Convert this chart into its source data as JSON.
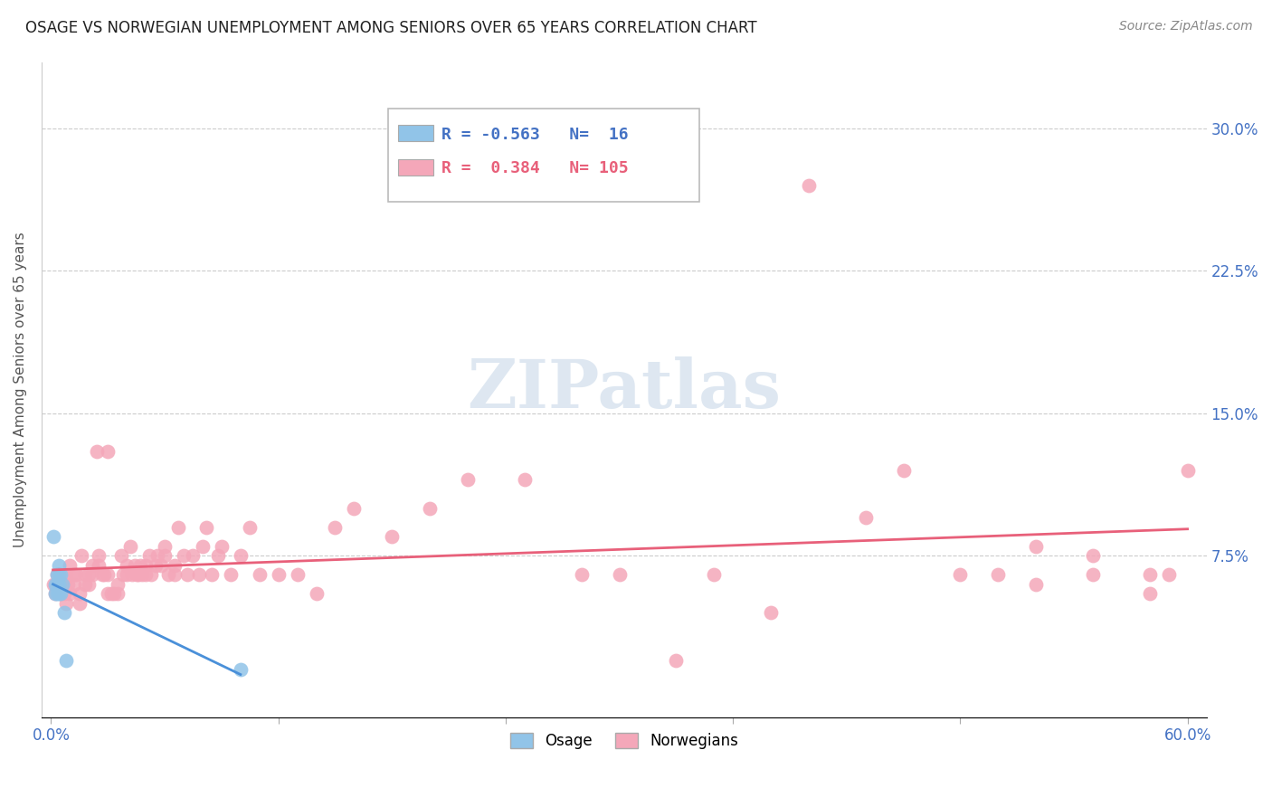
{
  "title": "OSAGE VS NORWEGIAN UNEMPLOYMENT AMONG SENIORS OVER 65 YEARS CORRELATION CHART",
  "source": "Source: ZipAtlas.com",
  "ylabel": "Unemployment Among Seniors over 65 years",
  "xlim": [
    -0.005,
    0.61
  ],
  "ylim": [
    -0.01,
    0.335
  ],
  "xticks": [
    0.0,
    0.12,
    0.24,
    0.36,
    0.48,
    0.6
  ],
  "xtick_labels": [
    "0.0%",
    "",
    "",
    "",
    "",
    "60.0%"
  ],
  "yticks_right": [
    0.075,
    0.15,
    0.225,
    0.3
  ],
  "ytick_labels_right": [
    "7.5%",
    "15.0%",
    "22.5%",
    "30.0%"
  ],
  "legend_R1": "-0.563",
  "legend_N1": "16",
  "legend_R2": "0.384",
  "legend_N2": "105",
  "osage_color": "#91c4e8",
  "norwegian_color": "#f4a7b9",
  "osage_line_color": "#4a90d9",
  "norwegian_line_color": "#e8607a",
  "watermark": "ZIPatlas",
  "watermark_color": "#c8d8e8",
  "osage_x": [
    0.001,
    0.002,
    0.002,
    0.003,
    0.003,
    0.003,
    0.004,
    0.004,
    0.004,
    0.004,
    0.005,
    0.005,
    0.006,
    0.007,
    0.008,
    0.1
  ],
  "osage_y": [
    0.085,
    0.055,
    0.06,
    0.055,
    0.06,
    0.065,
    0.055,
    0.06,
    0.065,
    0.07,
    0.055,
    0.065,
    0.06,
    0.045,
    0.02,
    0.015
  ],
  "norwegian_x": [
    0.001,
    0.002,
    0.002,
    0.003,
    0.003,
    0.004,
    0.004,
    0.005,
    0.005,
    0.006,
    0.007,
    0.007,
    0.008,
    0.008,
    0.009,
    0.01,
    0.01,
    0.012,
    0.012,
    0.013,
    0.015,
    0.015,
    0.016,
    0.018,
    0.018,
    0.02,
    0.02,
    0.022,
    0.022,
    0.024,
    0.025,
    0.025,
    0.027,
    0.028,
    0.03,
    0.03,
    0.03,
    0.032,
    0.033,
    0.035,
    0.035,
    0.037,
    0.038,
    0.04,
    0.04,
    0.042,
    0.043,
    0.044,
    0.045,
    0.046,
    0.047,
    0.048,
    0.05,
    0.05,
    0.052,
    0.053,
    0.055,
    0.056,
    0.058,
    0.06,
    0.06,
    0.062,
    0.065,
    0.065,
    0.067,
    0.07,
    0.072,
    0.075,
    0.078,
    0.08,
    0.082,
    0.085,
    0.088,
    0.09,
    0.095,
    0.1,
    0.105,
    0.11,
    0.12,
    0.13,
    0.14,
    0.15,
    0.16,
    0.18,
    0.2,
    0.22,
    0.25,
    0.28,
    0.3,
    0.33,
    0.35,
    0.38,
    0.4,
    0.43,
    0.45,
    0.48,
    0.5,
    0.52,
    0.55,
    0.58,
    0.59,
    0.6,
    0.58,
    0.55,
    0.52
  ],
  "norwegian_y": [
    0.06,
    0.06,
    0.055,
    0.065,
    0.06,
    0.06,
    0.065,
    0.055,
    0.06,
    0.058,
    0.06,
    0.055,
    0.05,
    0.065,
    0.06,
    0.055,
    0.07,
    0.065,
    0.06,
    0.065,
    0.05,
    0.055,
    0.075,
    0.06,
    0.065,
    0.065,
    0.06,
    0.07,
    0.065,
    0.13,
    0.075,
    0.07,
    0.065,
    0.065,
    0.055,
    0.065,
    0.13,
    0.055,
    0.055,
    0.055,
    0.06,
    0.075,
    0.065,
    0.065,
    0.07,
    0.08,
    0.065,
    0.07,
    0.065,
    0.065,
    0.07,
    0.065,
    0.07,
    0.065,
    0.075,
    0.065,
    0.07,
    0.075,
    0.07,
    0.075,
    0.08,
    0.065,
    0.07,
    0.065,
    0.09,
    0.075,
    0.065,
    0.075,
    0.065,
    0.08,
    0.09,
    0.065,
    0.075,
    0.08,
    0.065,
    0.075,
    0.09,
    0.065,
    0.065,
    0.065,
    0.055,
    0.09,
    0.1,
    0.085,
    0.1,
    0.115,
    0.115,
    0.065,
    0.065,
    0.02,
    0.065,
    0.045,
    0.27,
    0.095,
    0.12,
    0.065,
    0.065,
    0.06,
    0.075,
    0.055,
    0.065,
    0.12,
    0.065,
    0.065,
    0.08
  ]
}
